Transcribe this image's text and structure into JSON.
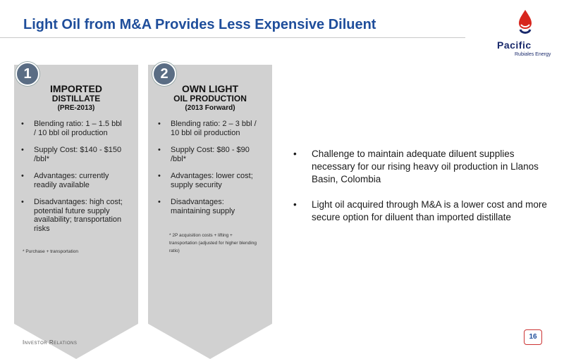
{
  "slide": {
    "title": "Light Oil from M&A Provides Less Expensive Diluent",
    "footer_left": "Investor Relations",
    "page_number": "16"
  },
  "logo": {
    "word": "Pacific",
    "sub": "Rubiales Energy",
    "colors": {
      "drop_red": "#d7261e",
      "drop_blue": "#1a2a6c"
    }
  },
  "cards": [
    {
      "number": "1",
      "heading_line1": "IMPORTED",
      "heading_line2": "DISTILLATE",
      "heading_line3": "(PRE-2013)",
      "items": [
        "Blending ratio: 1 – 1.5 bbl / 10 bbl oil production",
        "Supply Cost: $140 - $150 /bbl*",
        "Advantages: currently readily available",
        "Disadvantages: high cost; potential future supply availability; transportation risks"
      ],
      "footnote": "* Purchase + transportation"
    },
    {
      "number": "2",
      "heading_line1": "OWN LIGHT",
      "heading_line2": "OIL PRODUCTION",
      "heading_line3": "(2013 Forward)",
      "items": [
        "Blending ratio: 2 – 3 bbl / 10 bbl oil production",
        "Supply Cost: $80 - $90 /bbl*",
        "Advantages: lower cost; supply security",
        "Disadvantages: maintaining supply"
      ],
      "footnote": "* 2P acquisition costs + lifting + transportation (adjusted for higher blending ratio)"
    }
  ],
  "right_points": [
    "Challenge to maintain adequate diluent supplies necessary for our rising heavy oil production in Llanos Basin, Colombia",
    "Light oil acquired through M&A is a lower cost and more secure option for diluent than imported distillate"
  ]
}
